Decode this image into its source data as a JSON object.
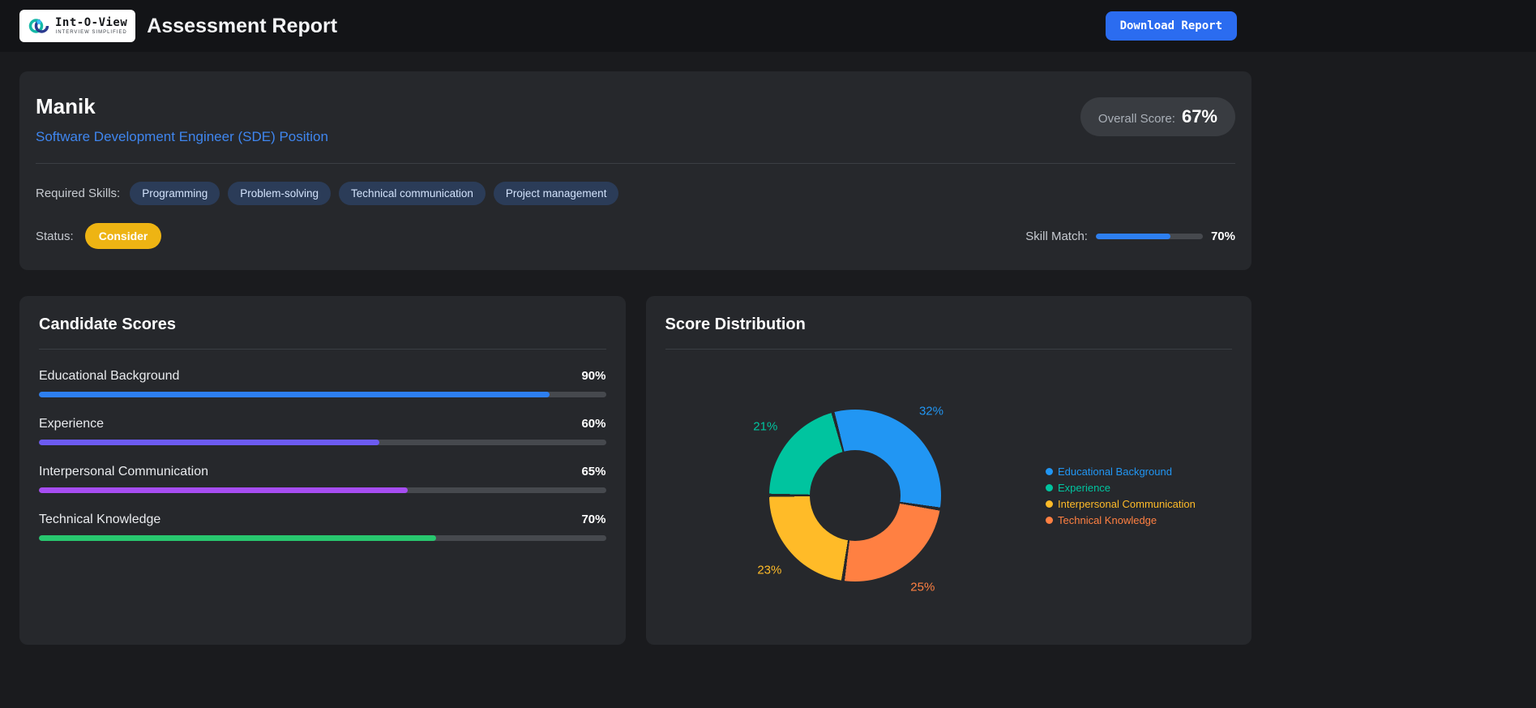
{
  "colors": {
    "accent_blue": "#2b6cf0",
    "link_blue": "#3f86ef",
    "status_yellow": "#eeb413",
    "skill_match_fill": "#2d7ff0"
  },
  "header": {
    "logo_brand": "Int-O-View",
    "logo_tagline": "INTERVIEW SIMPLIFIED",
    "title": "Assessment Report",
    "download_button_label": "Download Report"
  },
  "summary": {
    "name": "Manik",
    "position": "Software Development Engineer (SDE) Position",
    "overall_score_label": "Overall Score:",
    "overall_score_value": "67%",
    "required_skills_label": "Required Skills:",
    "skills": [
      "Programming",
      "Problem-solving",
      "Technical communication",
      "Project management"
    ],
    "status_label": "Status:",
    "status_value": "Consider",
    "skill_match_label": "Skill Match:",
    "skill_match_value": "70%",
    "skill_match_pct": 70
  },
  "scores_panel": {
    "title": "Candidate Scores",
    "rows": [
      {
        "label": "Educational Background",
        "value": "90%",
        "pct": 90,
        "color": "#2d7ff0"
      },
      {
        "label": "Experience",
        "value": "60%",
        "pct": 60,
        "color": "#6c5bf2"
      },
      {
        "label": "Interpersonal Communication",
        "value": "65%",
        "pct": 65,
        "color": "#a64df2"
      },
      {
        "label": "Technical Knowledge",
        "value": "70%",
        "pct": 70,
        "color": "#28c76f"
      }
    ]
  },
  "distribution_panel": {
    "title": "Score Distribution"
  },
  "chart_data": {
    "type": "pie",
    "title": "Score Distribution",
    "labels": [
      "Educational Background",
      "Experience",
      "Interpersonal Communication",
      "Technical Knowledge"
    ],
    "values": [
      32,
      21,
      23,
      25
    ],
    "unit": "%",
    "colors": [
      "#2196f3",
      "#00c49f",
      "#ffbb28",
      "#ff8042"
    ],
    "donut": true,
    "legend_position": "right",
    "start_angle_deg": -15,
    "direction": "clockwise",
    "draw_order": [
      0,
      3,
      2,
      1
    ]
  }
}
